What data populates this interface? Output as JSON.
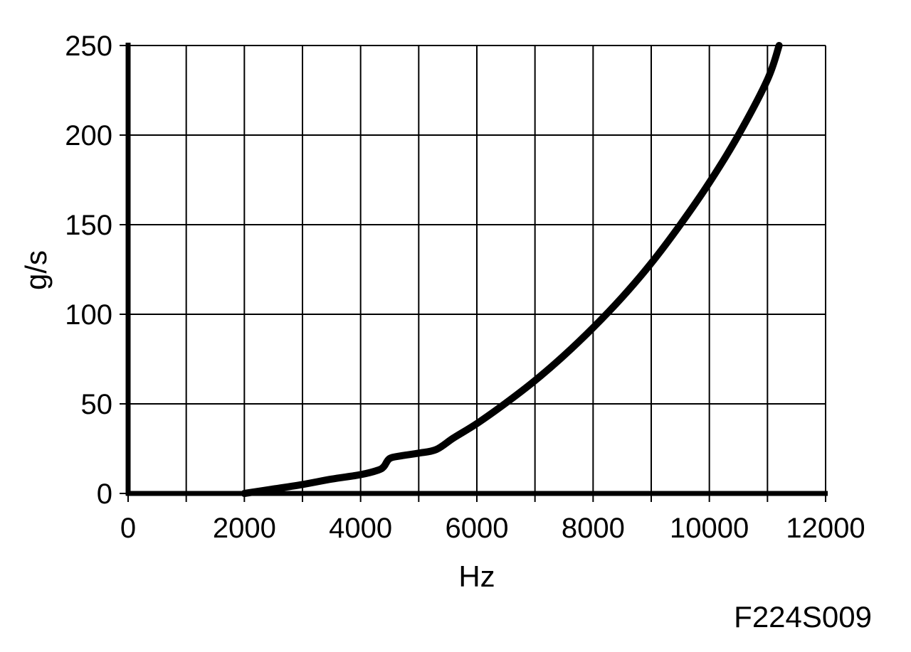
{
  "figure_code": "F224S009",
  "chart_data": {
    "type": "line",
    "xlabel": "Hz",
    "ylabel": "g/s",
    "xlim": [
      0,
      12000
    ],
    "ylim": [
      0,
      250
    ],
    "x_ticks": [
      "0",
      "2000",
      "4000",
      "6000",
      "8000",
      "10000",
      "12000"
    ],
    "y_ticks": [
      "0",
      "50",
      "100",
      "150",
      "200",
      "250"
    ],
    "x_grid_step": 1000,
    "y_grid_step": 50,
    "grid": true,
    "line_color": "#000000",
    "series": [
      {
        "x": [
          2000,
          2500,
          3000,
          3500,
          4000,
          4300,
          4400,
          4500,
          4700,
          5000,
          5300,
          5600,
          6000,
          6500,
          7000,
          7500,
          8000,
          8500,
          9000,
          9500,
          10000,
          10500,
          11000,
          11200
        ],
        "y": [
          0,
          2.5,
          5,
          8,
          10.5,
          13,
          15,
          19.5,
          21,
          22.5,
          24.5,
          31,
          39,
          50.5,
          63,
          77,
          92.5,
          109.5,
          128.5,
          150,
          173.5,
          200,
          231,
          250
        ]
      }
    ]
  }
}
